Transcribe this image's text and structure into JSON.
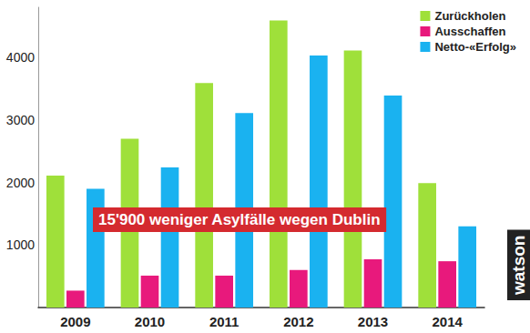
{
  "chart_data": {
    "type": "bar",
    "categories": [
      "2009",
      "2010",
      "2011",
      "2012",
      "2013",
      "2014"
    ],
    "series": [
      {
        "name": "Zurückholen",
        "color": "#9fe03a",
        "values": [
          2110,
          2700,
          3590,
          4590,
          4110,
          1990
        ]
      },
      {
        "name": "Ausschaffen",
        "color": "#e8197c",
        "values": [
          270,
          510,
          510,
          600,
          770,
          740
        ]
      },
      {
        "name": "Netto-«Erfolg»",
        "color": "#1ab2f0",
        "values": [
          1900,
          2240,
          3110,
          4030,
          3390,
          1300
        ]
      }
    ],
    "ylim": [
      0,
      4800
    ],
    "yticks": [
      1000,
      2000,
      3000,
      4000
    ],
    "grid": false,
    "legend": "top-right",
    "annotations": [
      "15'900 weniger Asylfälle wegen Dublin",
      "watson"
    ]
  }
}
